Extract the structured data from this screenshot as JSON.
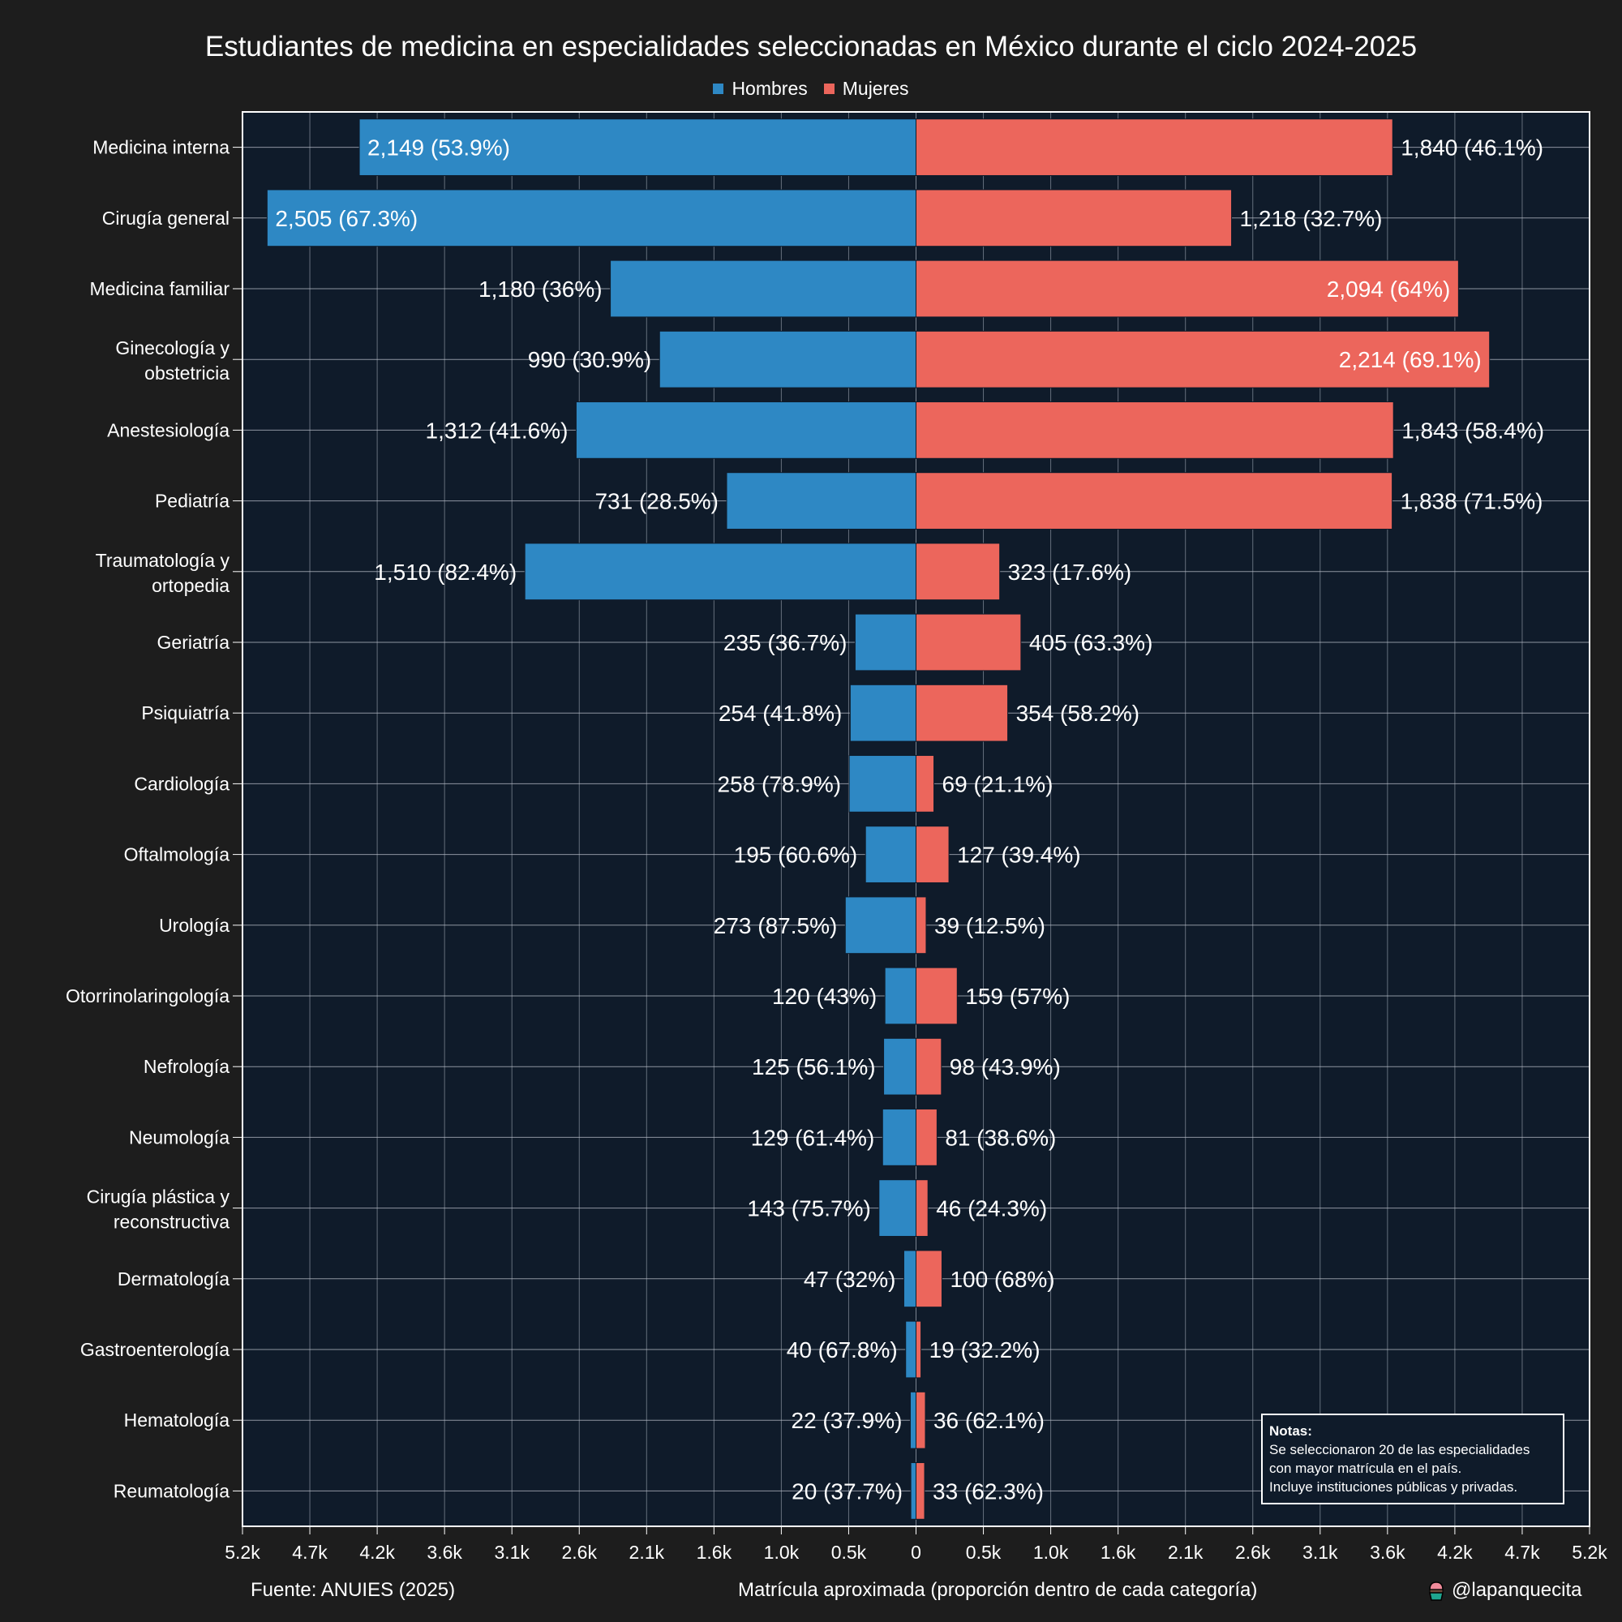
{
  "title": "Estudiantes de medicina en especialidades seleccionadas en México durante el ciclo 2024-2025",
  "legend": [
    {
      "name": "Hombres",
      "color": "#2e88c4"
    },
    {
      "name": "Mujeres",
      "color": "#ec665c"
    }
  ],
  "colors": {
    "page_background": "#1d1d1d",
    "plot_background": "#0f1b2a",
    "grid": "#8a93a0",
    "hombres": "#2e88c4",
    "mujeres": "#ec665c",
    "text": "#ffffff"
  },
  "footer": {
    "source": "Fuente: ANUIES (2025)",
    "xlabel": "Matrícula aproximada (proporción dentro de cada categoría)",
    "credit": "@lapanquecita"
  },
  "notes": {
    "title": "Notas:",
    "lines": [
      "Se seleccionaron 20 de las especialidades",
      "con mayor matrícula en el país.",
      "Incluye instituciones públicas y privadas."
    ]
  },
  "chart_data": {
    "type": "bar",
    "orientation": "horizontal-diverging",
    "title": "Estudiantes de medicina en especialidades seleccionadas en México durante el ciclo 2024-2025",
    "xlabel": "Matrícula aproximada (proporción dentro de cada categoría)",
    "ylabel": "",
    "legend_position": "top-center",
    "grid": true,
    "xlim": [
      -2600,
      2600
    ],
    "x_tick_labels": [
      "5.2k",
      "4.7k",
      "4.2k",
      "3.6k",
      "3.1k",
      "2.6k",
      "2.1k",
      "1.6k",
      "1.0k",
      "0.5k",
      "0",
      "0.5k",
      "1.0k",
      "1.6k",
      "2.1k",
      "2.6k",
      "3.1k",
      "3.6k",
      "4.2k",
      "4.7k",
      "5.2k"
    ],
    "categories": [
      [
        "Medicina interna"
      ],
      [
        "Cirugía general"
      ],
      [
        "Medicina familiar"
      ],
      [
        "Ginecología y",
        "obstetricia"
      ],
      [
        "Anestesiología"
      ],
      [
        "Pediatría"
      ],
      [
        "Traumatología y",
        "ortopedia"
      ],
      [
        "Geriatría"
      ],
      [
        "Psiquiatría"
      ],
      [
        "Cardiología"
      ],
      [
        "Oftalmología"
      ],
      [
        "Urología"
      ],
      [
        "Otorrinolaringología"
      ],
      [
        "Nefrología"
      ],
      [
        "Neumología"
      ],
      [
        "Cirugía plástica y",
        "reconstructiva"
      ],
      [
        "Dermatología"
      ],
      [
        "Gastroenterología"
      ],
      [
        "Hematología"
      ],
      [
        "Reumatología"
      ]
    ],
    "series": [
      {
        "name": "Hombres",
        "side": "left",
        "values": [
          2149,
          2505,
          1180,
          990,
          1312,
          731,
          1510,
          235,
          254,
          258,
          195,
          273,
          120,
          125,
          129,
          143,
          47,
          40,
          22,
          20
        ],
        "labels": [
          "2,149 (53.9%)",
          "2,505 (67.3%)",
          "1,180 (36%)",
          "990 (30.9%)",
          "1,312 (41.6%)",
          "731 (28.5%)",
          "1,510 (82.4%)",
          "235 (36.7%)",
          "254 (41.8%)",
          "258 (78.9%)",
          "195 (60.6%)",
          "273 (87.5%)",
          "120 (43%)",
          "125 (56.1%)",
          "129 (61.4%)",
          "143 (75.7%)",
          "47 (32%)",
          "40 (67.8%)",
          "22 (37.9%)",
          "20 (37.7%)"
        ]
      },
      {
        "name": "Mujeres",
        "side": "right",
        "values": [
          1840,
          1218,
          2094,
          2214,
          1843,
          1838,
          323,
          405,
          354,
          69,
          127,
          39,
          159,
          98,
          81,
          46,
          100,
          19,
          36,
          33
        ],
        "labels": [
          "1,840 (46.1%)",
          "1,218 (32.7%)",
          "2,094 (64%)",
          "2,214 (69.1%)",
          "1,843 (58.4%)",
          "1,838 (71.5%)",
          "323 (17.6%)",
          "405 (63.3%)",
          "354 (58.2%)",
          "69 (21.1%)",
          "127 (39.4%)",
          "39 (12.5%)",
          "159 (57%)",
          "98 (43.9%)",
          "81 (38.6%)",
          "46 (24.3%)",
          "100 (68%)",
          "19 (32.2%)",
          "36 (62.1%)",
          "33 (62.3%)"
        ]
      }
    ]
  }
}
